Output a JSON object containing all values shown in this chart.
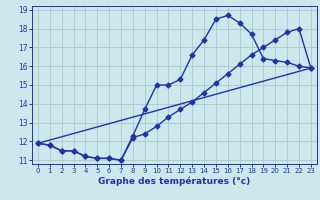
{
  "xlabel": "Graphe des températures (°c)",
  "background_color": "#cde8ec",
  "grid_color": "#aac8cc",
  "line_color": "#2233aa",
  "markersize": 2.5,
  "linewidth": 1.0,
  "xlim": [
    -0.5,
    23.5
  ],
  "ylim": [
    10.8,
    19.2
  ],
  "xticks": [
    0,
    1,
    2,
    3,
    4,
    5,
    6,
    7,
    8,
    9,
    10,
    11,
    12,
    13,
    14,
    15,
    16,
    17,
    18,
    19,
    20,
    21,
    22,
    23
  ],
  "yticks": [
    11,
    12,
    13,
    14,
    15,
    16,
    17,
    18,
    19
  ],
  "line1_x": [
    0,
    1,
    2,
    3,
    4,
    5,
    6,
    7,
    8,
    9,
    10,
    11,
    12,
    13,
    14,
    15,
    16,
    17,
    18,
    19,
    20,
    21,
    22,
    23
  ],
  "line1_y": [
    11.9,
    11.8,
    11.5,
    11.5,
    11.2,
    11.1,
    11.1,
    11.0,
    12.3,
    13.7,
    15.0,
    15.0,
    15.3,
    16.6,
    17.4,
    18.5,
    18.7,
    18.3,
    17.7,
    16.4,
    16.3,
    16.2,
    16.0,
    15.9
  ],
  "line2_x": [
    0,
    1,
    2,
    3,
    4,
    5,
    6,
    7,
    8,
    9,
    10,
    11,
    12,
    13,
    14,
    15,
    16,
    17,
    18,
    19,
    20,
    21,
    22,
    23
  ],
  "line2_y": [
    11.9,
    11.8,
    11.5,
    11.5,
    11.2,
    11.1,
    11.1,
    11.0,
    12.2,
    12.4,
    12.8,
    13.3,
    13.7,
    14.1,
    14.6,
    15.1,
    15.6,
    16.1,
    16.6,
    17.0,
    17.4,
    17.8,
    18.0,
    15.9
  ],
  "line3_x": [
    0,
    23
  ],
  "line3_y": [
    11.9,
    15.9
  ]
}
